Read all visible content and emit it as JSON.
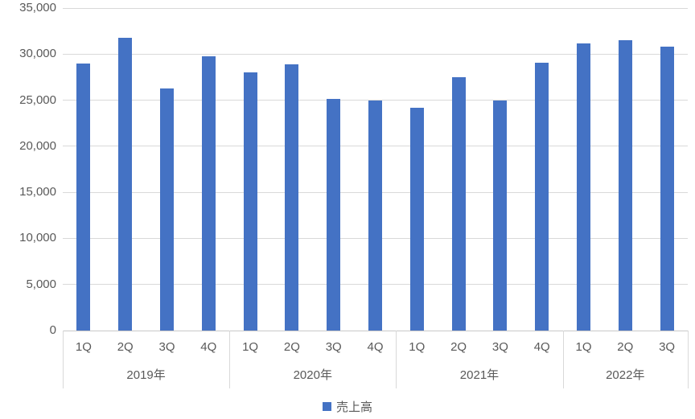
{
  "chart_data": {
    "type": "bar",
    "title": "",
    "xlabel": "",
    "ylabel": "",
    "legend": "売上高",
    "legend_position": "bottom",
    "grid": true,
    "ylim": [
      0,
      35000
    ],
    "ytick_interval": 5000,
    "ytick_labels": [
      "0",
      "5,000",
      "10,000",
      "15,000",
      "20,000",
      "25,000",
      "30,000",
      "35,000"
    ],
    "groups": [
      {
        "label": "2019年",
        "categories": [
          "1Q",
          "2Q",
          "3Q",
          "4Q"
        ],
        "values": [
          29000,
          31800,
          26300,
          29800
        ]
      },
      {
        "label": "2020年",
        "categories": [
          "1Q",
          "2Q",
          "3Q",
          "4Q"
        ],
        "values": [
          28000,
          28900,
          25100,
          25000
        ]
      },
      {
        "label": "2021年",
        "categories": [
          "1Q",
          "2Q",
          "3Q",
          "4Q"
        ],
        "values": [
          24150,
          27500,
          25000,
          29100
        ]
      },
      {
        "label": "2022年",
        "categories": [
          "1Q",
          "2Q",
          "3Q"
        ],
        "values": [
          31200,
          31500,
          30800
        ]
      }
    ],
    "colors": {
      "bar": "#4472C4",
      "gridline": "#d9d9d9",
      "axis_line": "#c8c8c8",
      "text": "#595959"
    }
  }
}
